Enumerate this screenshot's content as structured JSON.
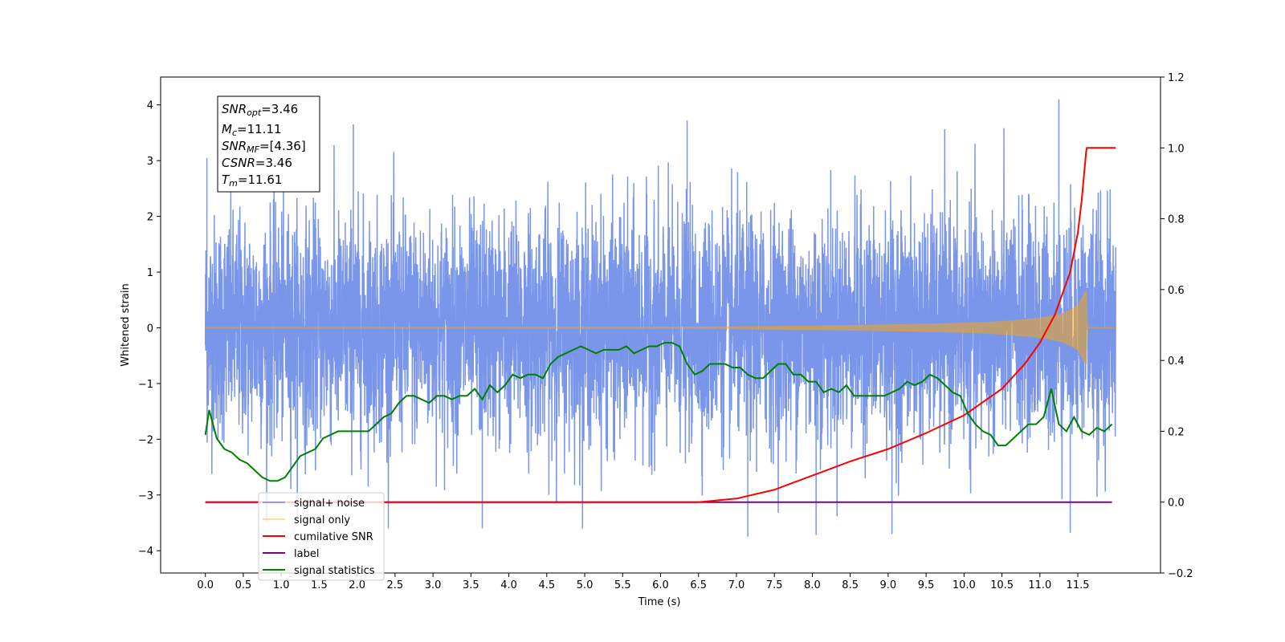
{
  "chart_data": {
    "type": "line",
    "xlabel": "Time (s)",
    "ylabel": "Whitened strain",
    "xlim": [
      -0.59,
      12.59
    ],
    "ylim": [
      -4.4,
      4.5
    ],
    "y2lim": [
      -0.2,
      1.2
    ],
    "x_ticks": [
      "0.0",
      "0.5",
      "1.0",
      "1.5",
      "2.0",
      "2.5",
      "3.0",
      "3.5",
      "4.0",
      "4.5",
      "5.0",
      "5.5",
      "6.0",
      "6.5",
      "7.0",
      "7.5",
      "8.0",
      "8.5",
      "9.0",
      "9.5",
      "10.0",
      "10.5",
      "11.0",
      "11.5"
    ],
    "y_ticks": [
      "4",
      "3",
      "2",
      "1",
      "0",
      "−1",
      "−2",
      "−3",
      "−4"
    ],
    "y_tick_values": [
      4,
      3,
      2,
      1,
      0,
      -1,
      -2,
      -3,
      -4
    ],
    "y2_ticks": [
      "1.2",
      "1.0",
      "0.8",
      "0.6",
      "0.4",
      "0.2",
      "0.0",
      "−0.2"
    ],
    "y2_tick_values": [
      1.2,
      1.0,
      0.8,
      0.6,
      0.4,
      0.2,
      0.0,
      -0.2
    ],
    "grid": false,
    "legend_position": "bottom-left",
    "annotation": {
      "lines": [
        {
          "sym": "SNR",
          "sub": "opt",
          "val": "=3.46"
        },
        {
          "sym": "M",
          "sub": "c",
          "val": "=11.11"
        },
        {
          "sym": "SNR",
          "sub": "MF",
          "val": "=[4.36]"
        },
        {
          "sym": "CSNR",
          "sub": "",
          "val": "=3.46"
        },
        {
          "sym": "T",
          "sub": "m",
          "val": "=11.61"
        }
      ]
    },
    "series": [
      {
        "name": "signal+ noise",
        "color": "#4169e1",
        "axis": "left",
        "style": "noise",
        "x_range": [
          0.0,
          12.0
        ],
        "approx_std": 1.0,
        "peaks": [
          [
            0.02,
            3.05
          ],
          [
            1.95,
            3.65
          ],
          [
            6.35,
            3.72
          ],
          [
            11.25,
            4.1
          ],
          [
            7.15,
            -3.75
          ],
          [
            8.05,
            -3.72
          ],
          [
            9.05,
            -3.7
          ],
          [
            11.4,
            -3.68
          ],
          [
            3.65,
            -3.6
          ]
        ]
      },
      {
        "name": "signal only",
        "color": "#ffa500",
        "axis": "left",
        "style": "chirp",
        "x": [
          0.0,
          6.5,
          8.0,
          9.0,
          10.0,
          10.5,
          11.0,
          11.3,
          11.5,
          11.61,
          11.63,
          12.0
        ],
        "amplitude": [
          0.01,
          0.02,
          0.04,
          0.06,
          0.09,
          0.12,
          0.18,
          0.26,
          0.4,
          0.68,
          0.0,
          0.0
        ]
      },
      {
        "name": "cumilative SNR",
        "color": "#ff0000",
        "axis": "right",
        "x": [
          0.0,
          6.5,
          7.0,
          7.5,
          8.0,
          8.5,
          9.0,
          9.5,
          10.0,
          10.5,
          10.8,
          11.0,
          11.2,
          11.4,
          11.5,
          11.55,
          11.61,
          11.62,
          12.0
        ],
        "values": [
          0.0,
          0.0,
          0.01,
          0.035,
          0.075,
          0.115,
          0.15,
          0.195,
          0.245,
          0.32,
          0.39,
          0.45,
          0.53,
          0.65,
          0.76,
          0.85,
          0.99,
          1.0,
          1.0
        ]
      },
      {
        "name": "label",
        "color": "#800080",
        "axis": "right",
        "x": [
          0.0,
          11.95
        ],
        "values": [
          0.0,
          0.0
        ]
      },
      {
        "name": "signal statistics",
        "color": "#008000",
        "axis": "right",
        "x": [
          0.0,
          0.05,
          0.15,
          0.25,
          0.35,
          0.45,
          0.55,
          0.65,
          0.75,
          0.85,
          0.95,
          1.05,
          1.15,
          1.25,
          1.35,
          1.45,
          1.55,
          1.65,
          1.75,
          1.85,
          1.95,
          2.05,
          2.15,
          2.25,
          2.35,
          2.45,
          2.55,
          2.65,
          2.75,
          2.85,
          2.95,
          3.05,
          3.15,
          3.25,
          3.35,
          3.45,
          3.55,
          3.65,
          3.75,
          3.85,
          3.95,
          4.05,
          4.15,
          4.25,
          4.35,
          4.45,
          4.55,
          4.65,
          4.75,
          4.85,
          4.95,
          5.05,
          5.15,
          5.25,
          5.35,
          5.45,
          5.55,
          5.65,
          5.75,
          5.85,
          5.95,
          6.05,
          6.15,
          6.25,
          6.35,
          6.45,
          6.55,
          6.65,
          6.75,
          6.85,
          6.95,
          7.05,
          7.15,
          7.25,
          7.35,
          7.45,
          7.55,
          7.65,
          7.75,
          7.85,
          7.95,
          8.05,
          8.15,
          8.25,
          8.35,
          8.45,
          8.55,
          8.65,
          8.75,
          8.85,
          8.95,
          9.05,
          9.15,
          9.25,
          9.35,
          9.45,
          9.55,
          9.65,
          9.75,
          9.85,
          9.95,
          10.05,
          10.15,
          10.25,
          10.35,
          10.45,
          10.55,
          10.65,
          10.75,
          10.85,
          10.95,
          11.05,
          11.15,
          11.25,
          11.35,
          11.45,
          11.55,
          11.65,
          11.75,
          11.85,
          11.95
        ],
        "values": [
          0.19,
          0.26,
          0.18,
          0.15,
          0.14,
          0.12,
          0.11,
          0.09,
          0.07,
          0.06,
          0.06,
          0.07,
          0.1,
          0.13,
          0.14,
          0.15,
          0.18,
          0.19,
          0.2,
          0.2,
          0.2,
          0.2,
          0.2,
          0.22,
          0.24,
          0.25,
          0.28,
          0.3,
          0.3,
          0.29,
          0.28,
          0.3,
          0.3,
          0.29,
          0.3,
          0.3,
          0.32,
          0.29,
          0.33,
          0.31,
          0.33,
          0.36,
          0.35,
          0.36,
          0.36,
          0.35,
          0.39,
          0.41,
          0.42,
          0.43,
          0.44,
          0.43,
          0.42,
          0.43,
          0.43,
          0.43,
          0.44,
          0.42,
          0.43,
          0.44,
          0.44,
          0.45,
          0.45,
          0.44,
          0.39,
          0.36,
          0.37,
          0.39,
          0.39,
          0.39,
          0.38,
          0.38,
          0.36,
          0.35,
          0.35,
          0.37,
          0.39,
          0.39,
          0.36,
          0.36,
          0.34,
          0.34,
          0.31,
          0.32,
          0.31,
          0.33,
          0.3,
          0.3,
          0.3,
          0.3,
          0.3,
          0.31,
          0.32,
          0.34,
          0.33,
          0.34,
          0.36,
          0.35,
          0.33,
          0.31,
          0.3,
          0.25,
          0.22,
          0.2,
          0.19,
          0.16,
          0.16,
          0.18,
          0.2,
          0.22,
          0.22,
          0.24,
          0.32,
          0.22,
          0.2,
          0.24,
          0.2,
          0.19,
          0.21,
          0.2,
          0.22
        ]
      }
    ]
  }
}
